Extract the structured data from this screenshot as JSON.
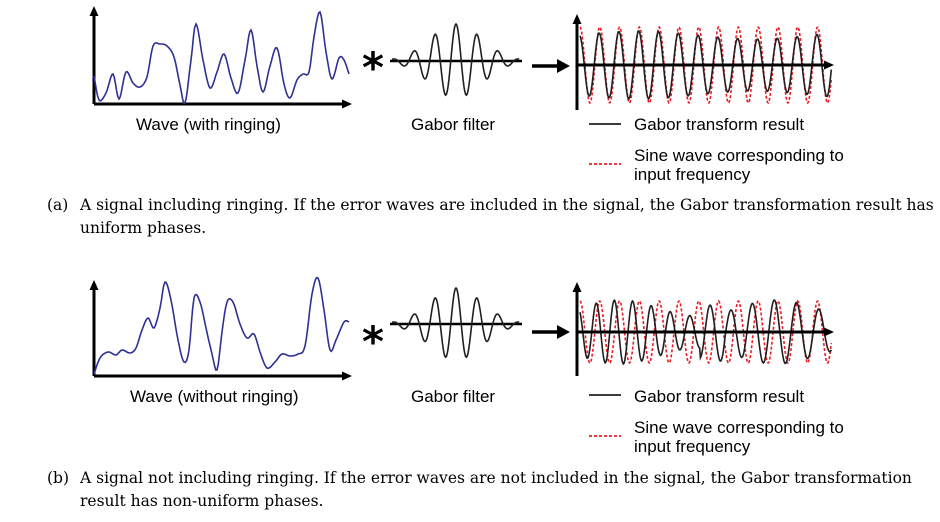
{
  "panels": [
    {
      "id": "a",
      "wave_label": "Wave (with ringing)",
      "filter_label": "Gabor filter",
      "legend": {
        "result_label": "Gabor transform result",
        "sine_label": "Sine wave corresponding to input frequency"
      },
      "caption_tag": "(a)",
      "caption_text": "A signal including ringing. If the error waves are included in the signal, the Gabor transformation result has uniform phases.",
      "phase": "uniform"
    },
    {
      "id": "b",
      "wave_label": "Wave (without ringing)",
      "filter_label": "Gabor filter",
      "legend": {
        "result_label": "Gabor transform result",
        "sine_label": "Sine wave corresponding to input frequency"
      },
      "caption_tag": "(b)",
      "caption_text": "A signal not including ringing. If the error waves are not included in the signal, the Gabor transformation result has non-uniform phases.",
      "phase": "non-uniform"
    }
  ],
  "colors": {
    "wave": "#2e3192",
    "result": "#231f20",
    "sine": "#ed1c24",
    "axis": "#000000"
  }
}
